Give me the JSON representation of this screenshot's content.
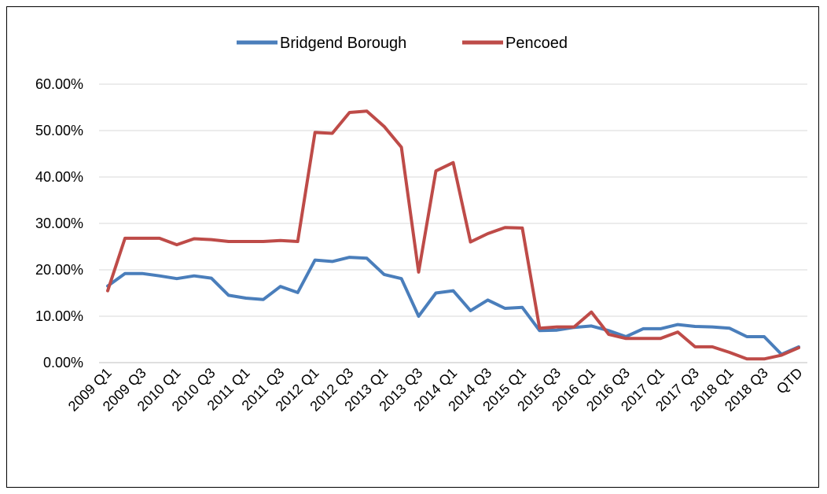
{
  "chart_data": {
    "type": "line",
    "title": "",
    "xlabel": "",
    "ylabel": "",
    "ylim": [
      0,
      0.6
    ],
    "y_ticks": [
      "0.00%",
      "10.00%",
      "20.00%",
      "30.00%",
      "40.00%",
      "50.00%",
      "60.00%"
    ],
    "grid": "horizontal",
    "legend_position": "top",
    "categories": [
      "2009 Q1",
      "2009 Q2",
      "2009 Q3",
      "2009 Q4",
      "2010 Q1",
      "2010 Q2",
      "2010 Q3",
      "2010 Q4",
      "2011 Q1",
      "2011 Q2",
      "2011 Q3",
      "2011 Q4",
      "2012 Q1",
      "2012 Q2",
      "2012 Q3",
      "2012 Q4",
      "2013 Q1",
      "2013 Q2",
      "2013 Q3",
      "2013 Q4",
      "2014 Q1",
      "2014 Q2",
      "2014 Q3",
      "2014 Q4",
      "2015 Q1",
      "2015 Q2",
      "2015 Q3",
      "2015 Q4",
      "2016 Q1",
      "2016 Q2",
      "2016 Q3",
      "2016 Q4",
      "2017 Q1",
      "2017 Q2",
      "2017 Q3",
      "2017 Q4",
      "2018 Q1",
      "2018 Q2",
      "2018 Q3",
      "2018 Q4",
      "QTD"
    ],
    "x_tick_labels": [
      "2009 Q1",
      "2009 Q3",
      "2010 Q1",
      "2010 Q3",
      "2011 Q1",
      "2011 Q3",
      "2012 Q1",
      "2012 Q3",
      "2013 Q1",
      "2013 Q3",
      "2014 Q1",
      "2014 Q3",
      "2015 Q1",
      "2015 Q3",
      "2016 Q1",
      "2016 Q3",
      "2017 Q1",
      "2017 Q3",
      "2018 Q1",
      "2018 Q3",
      "QTD"
    ],
    "series": [
      {
        "name": "Bridgend Borough",
        "color": "#4a7ebb",
        "values": [
          0.165,
          0.192,
          0.192,
          0.187,
          0.181,
          0.187,
          0.182,
          0.145,
          0.139,
          0.136,
          0.164,
          0.151,
          0.221,
          0.218,
          0.227,
          0.225,
          0.19,
          0.181,
          0.1,
          0.15,
          0.155,
          0.112,
          0.135,
          0.117,
          0.119,
          0.069,
          0.07,
          0.076,
          0.079,
          0.069,
          0.056,
          0.073,
          0.073,
          0.082,
          0.078,
          0.077,
          0.074,
          0.056,
          0.056,
          0.018,
          0.034
        ]
      },
      {
        "name": "Pencoed",
        "color": "#be4b48",
        "values": [
          0.155,
          0.268,
          0.268,
          0.268,
          0.254,
          0.267,
          0.265,
          0.261,
          0.261,
          0.261,
          0.263,
          0.261,
          0.496,
          0.494,
          0.539,
          0.542,
          0.509,
          0.464,
          0.195,
          0.413,
          0.431,
          0.26,
          0.278,
          0.291,
          0.29,
          0.074,
          0.077,
          0.077,
          0.109,
          0.061,
          0.052,
          0.052,
          0.052,
          0.066,
          0.034,
          0.034,
          0.022,
          0.008,
          0.008,
          0.016,
          0.032
        ]
      }
    ]
  }
}
